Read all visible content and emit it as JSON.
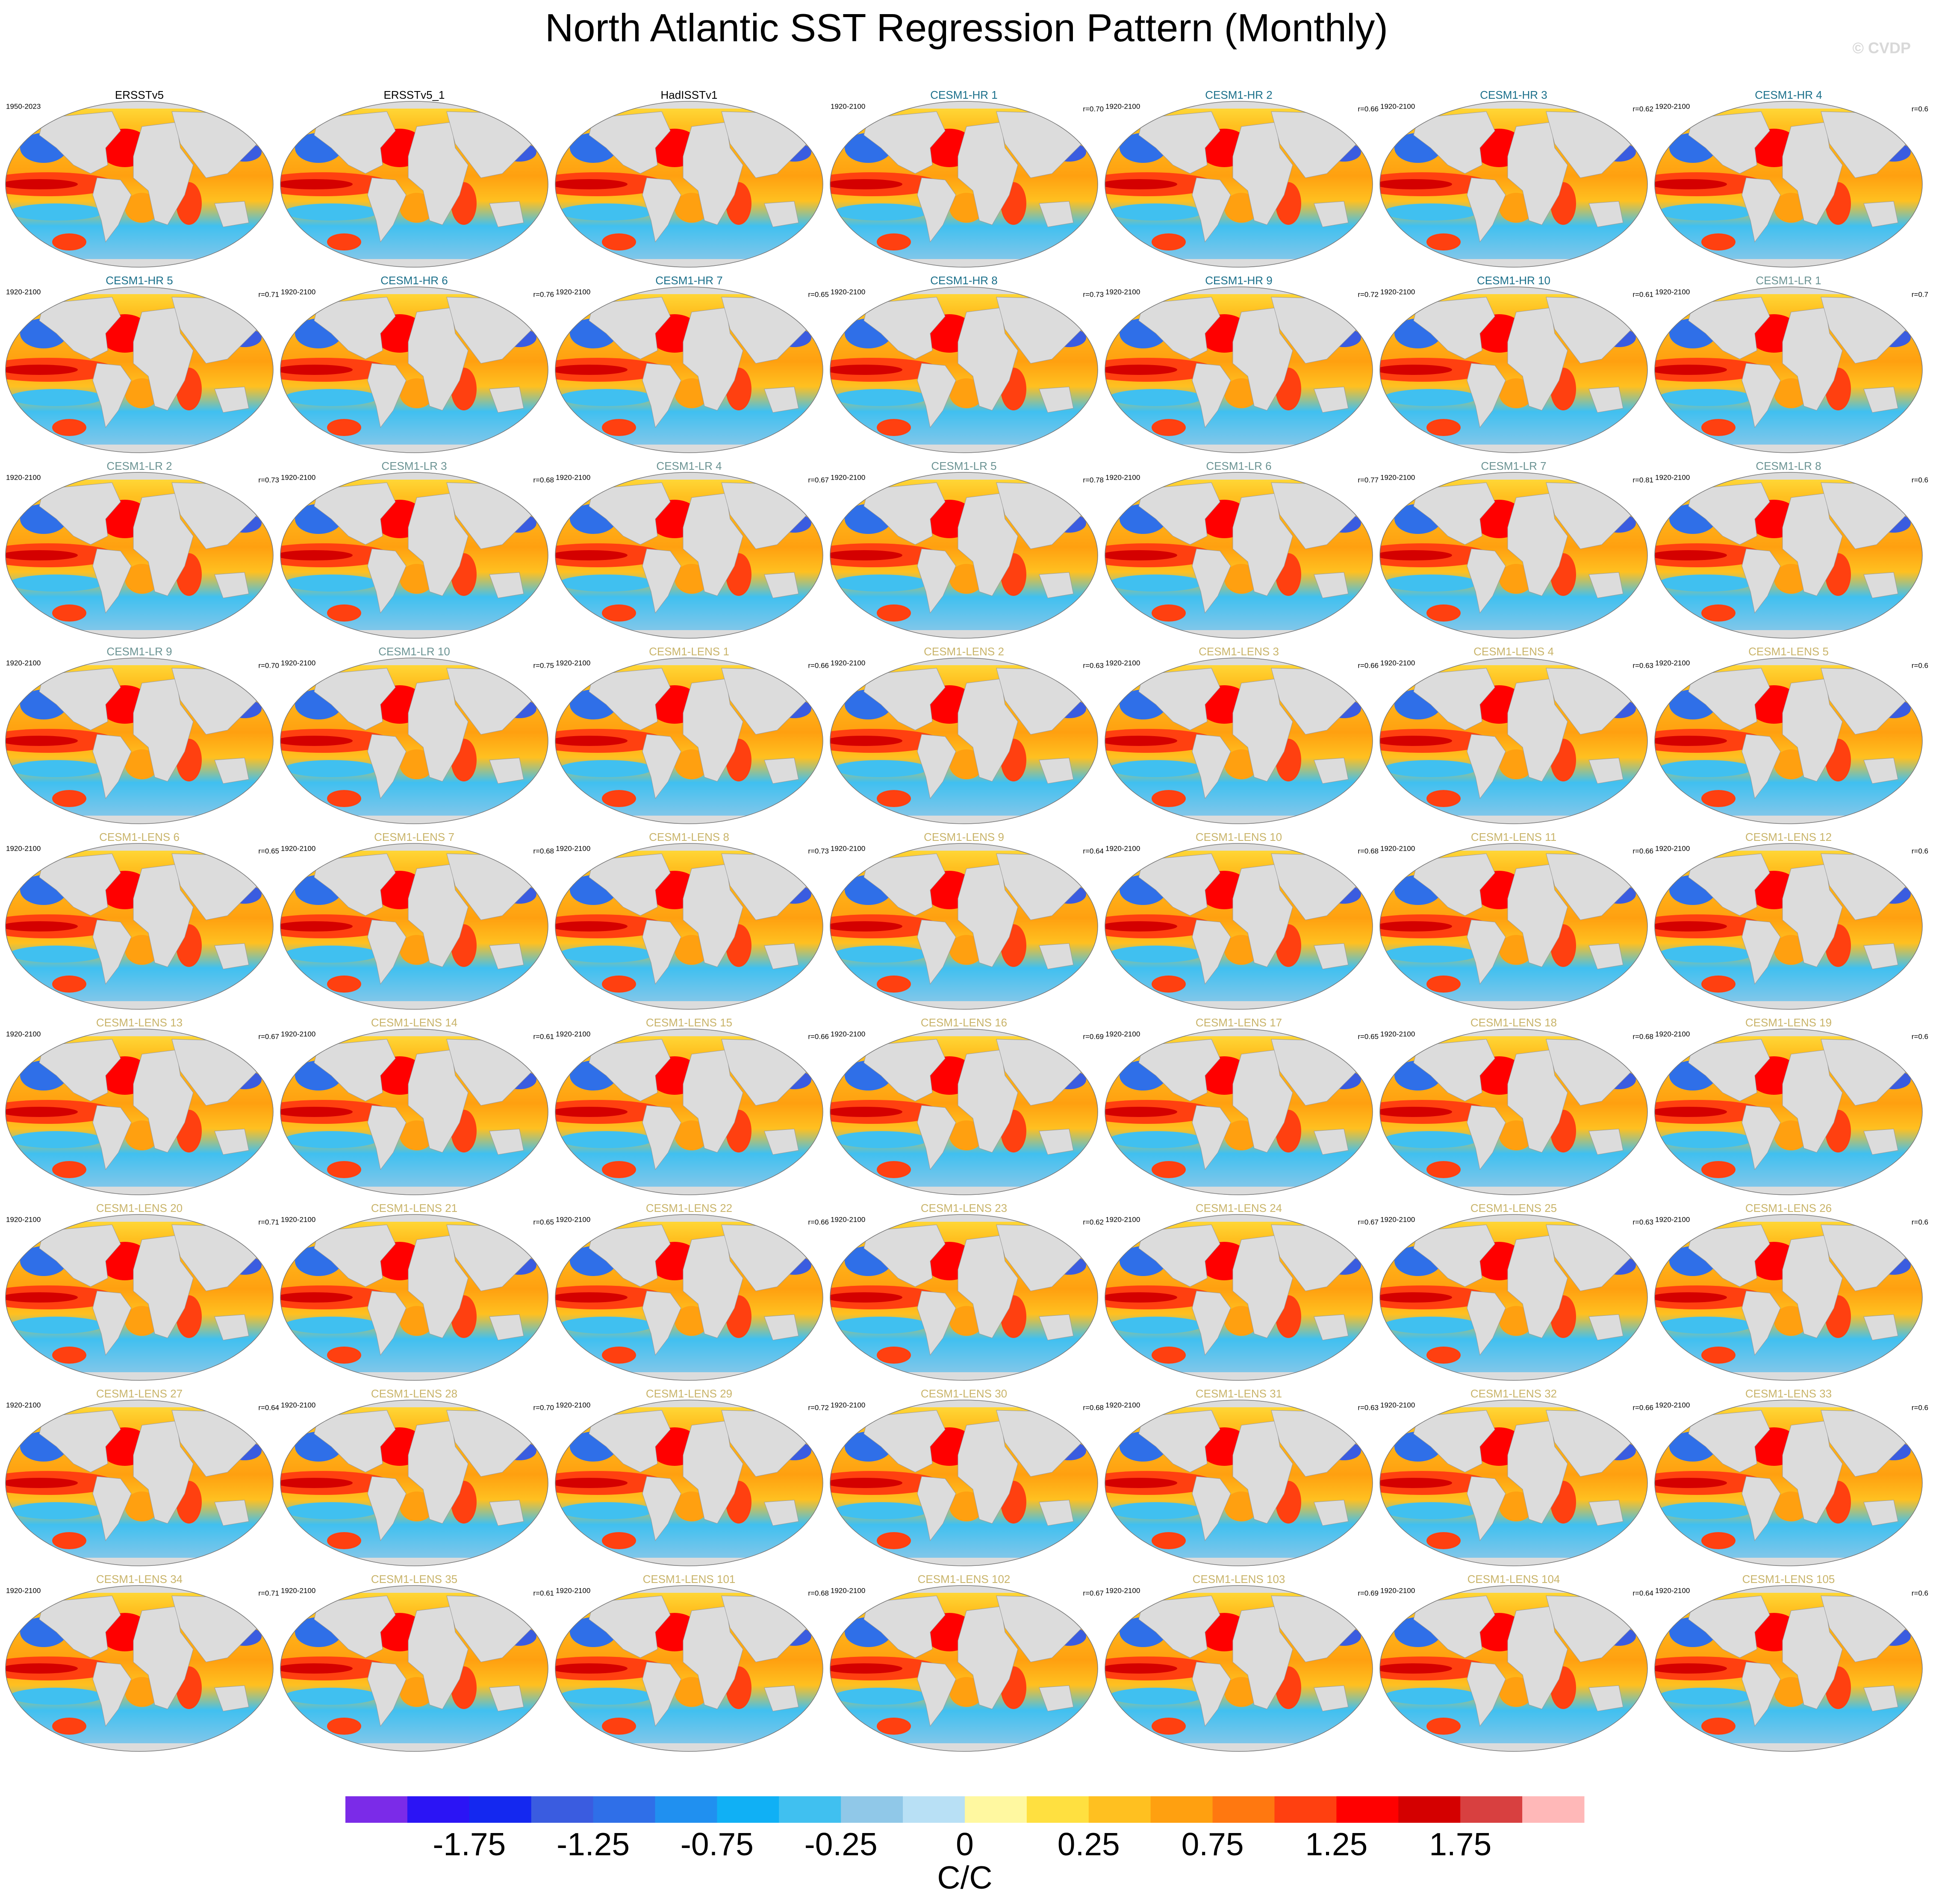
{
  "title": "North Atlantic SST Regression Pattern (Monthly)",
  "watermark": "© CVDP",
  "panels": [
    {
      "title": "ERSSTv5",
      "color": "#000000",
      "years": "1950-2023"
    },
    {
      "title": "ERSSTv5_1",
      "color": "#000000"
    },
    {
      "title": "HadISSTv1",
      "color": "#000000"
    },
    {
      "title": "CESM1-HR 1",
      "color": "#1a6f8a",
      "years": "1920-2100",
      "r": "r=0.70"
    },
    {
      "title": "CESM1-HR 2",
      "color": "#1a6f8a",
      "years": "1920-2100",
      "r": "r=0.66"
    },
    {
      "title": "CESM1-HR 3",
      "color": "#1a6f8a",
      "years": "1920-2100",
      "r": "r=0.62"
    },
    {
      "title": "CESM1-HR 4",
      "color": "#1a6f8a",
      "years": "1920-2100",
      "r": "r=0.6"
    },
    {
      "title": "CESM1-HR 5",
      "color": "#1a6f8a",
      "years": "1920-2100",
      "r": "r=0.71"
    },
    {
      "title": "CESM1-HR 6",
      "color": "#1a6f8a",
      "years": "1920-2100",
      "r": "r=0.76"
    },
    {
      "title": "CESM1-HR 7",
      "color": "#1a6f8a",
      "years": "1920-2100",
      "r": "r=0.65"
    },
    {
      "title": "CESM1-HR 8",
      "color": "#1a6f8a",
      "years": "1920-2100",
      "r": "r=0.73"
    },
    {
      "title": "CESM1-HR 9",
      "color": "#1a6f8a",
      "years": "1920-2100",
      "r": "r=0.72"
    },
    {
      "title": "CESM1-HR 10",
      "color": "#1a6f8a",
      "years": "1920-2100",
      "r": "r=0.61"
    },
    {
      "title": "CESM1-LR 1",
      "color": "#6b9393",
      "years": "1920-2100",
      "r": "r=0.7"
    },
    {
      "title": "CESM1-LR 2",
      "color": "#6b9393",
      "years": "1920-2100",
      "r": "r=0.73"
    },
    {
      "title": "CESM1-LR 3",
      "color": "#6b9393",
      "years": "1920-2100",
      "r": "r=0.68"
    },
    {
      "title": "CESM1-LR 4",
      "color": "#6b9393",
      "years": "1920-2100",
      "r": "r=0.67"
    },
    {
      "title": "CESM1-LR 5",
      "color": "#6b9393",
      "years": "1920-2100",
      "r": "r=0.78"
    },
    {
      "title": "CESM1-LR 6",
      "color": "#6b9393",
      "years": "1920-2100",
      "r": "r=0.77"
    },
    {
      "title": "CESM1-LR 7",
      "color": "#6b9393",
      "years": "1920-2100",
      "r": "r=0.81"
    },
    {
      "title": "CESM1-LR 8",
      "color": "#6b9393",
      "years": "1920-2100",
      "r": "r=0.6"
    },
    {
      "title": "CESM1-LR 9",
      "color": "#6b9393",
      "years": "1920-2100",
      "r": "r=0.70"
    },
    {
      "title": "CESM1-LR 10",
      "color": "#6b9393",
      "years": "1920-2100",
      "r": "r=0.75"
    },
    {
      "title": "CESM1-LENS 1",
      "color": "#c9b46a",
      "years": "1920-2100",
      "r": "r=0.66"
    },
    {
      "title": "CESM1-LENS 2",
      "color": "#c9b46a",
      "years": "1920-2100",
      "r": "r=0.63"
    },
    {
      "title": "CESM1-LENS 3",
      "color": "#c9b46a",
      "years": "1920-2100",
      "r": "r=0.66"
    },
    {
      "title": "CESM1-LENS 4",
      "color": "#c9b46a",
      "years": "1920-2100",
      "r": "r=0.63"
    },
    {
      "title": "CESM1-LENS 5",
      "color": "#c9b46a",
      "years": "1920-2100",
      "r": "r=0.6"
    },
    {
      "title": "CESM1-LENS 6",
      "color": "#c9b46a",
      "years": "1920-2100",
      "r": "r=0.65"
    },
    {
      "title": "CESM1-LENS 7",
      "color": "#c9b46a",
      "years": "1920-2100",
      "r": "r=0.68"
    },
    {
      "title": "CESM1-LENS 8",
      "color": "#c9b46a",
      "years": "1920-2100",
      "r": "r=0.73"
    },
    {
      "title": "CESM1-LENS 9",
      "color": "#c9b46a",
      "years": "1920-2100",
      "r": "r=0.64"
    },
    {
      "title": "CESM1-LENS 10",
      "color": "#c9b46a",
      "years": "1920-2100",
      "r": "r=0.68"
    },
    {
      "title": "CESM1-LENS 11",
      "color": "#c9b46a",
      "years": "1920-2100",
      "r": "r=0.66"
    },
    {
      "title": "CESM1-LENS 12",
      "color": "#c9b46a",
      "years": "1920-2100",
      "r": "r=0.6"
    },
    {
      "title": "CESM1-LENS 13",
      "color": "#c9b46a",
      "years": "1920-2100",
      "r": "r=0.67"
    },
    {
      "title": "CESM1-LENS 14",
      "color": "#c9b46a",
      "years": "1920-2100",
      "r": "r=0.61"
    },
    {
      "title": "CESM1-LENS 15",
      "color": "#c9b46a",
      "years": "1920-2100",
      "r": "r=0.66"
    },
    {
      "title": "CESM1-LENS 16",
      "color": "#c9b46a",
      "years": "1920-2100",
      "r": "r=0.69"
    },
    {
      "title": "CESM1-LENS 17",
      "color": "#c9b46a",
      "years": "1920-2100",
      "r": "r=0.65"
    },
    {
      "title": "CESM1-LENS 18",
      "color": "#c9b46a",
      "years": "1920-2100",
      "r": "r=0.68"
    },
    {
      "title": "CESM1-LENS 19",
      "color": "#c9b46a",
      "years": "1920-2100",
      "r": "r=0.6"
    },
    {
      "title": "CESM1-LENS 20",
      "color": "#c9b46a",
      "years": "1920-2100",
      "r": "r=0.71"
    },
    {
      "title": "CESM1-LENS 21",
      "color": "#c9b46a",
      "years": "1920-2100",
      "r": "r=0.65"
    },
    {
      "title": "CESM1-LENS 22",
      "color": "#c9b46a",
      "years": "1920-2100",
      "r": "r=0.66"
    },
    {
      "title": "CESM1-LENS 23",
      "color": "#c9b46a",
      "years": "1920-2100",
      "r": "r=0.62"
    },
    {
      "title": "CESM1-LENS 24",
      "color": "#c9b46a",
      "years": "1920-2100",
      "r": "r=0.67"
    },
    {
      "title": "CESM1-LENS 25",
      "color": "#c9b46a",
      "years": "1920-2100",
      "r": "r=0.63"
    },
    {
      "title": "CESM1-LENS 26",
      "color": "#c9b46a",
      "years": "1920-2100",
      "r": "r=0.6"
    },
    {
      "title": "CESM1-LENS 27",
      "color": "#c9b46a",
      "years": "1920-2100",
      "r": "r=0.64"
    },
    {
      "title": "CESM1-LENS 28",
      "color": "#c9b46a",
      "years": "1920-2100",
      "r": "r=0.70"
    },
    {
      "title": "CESM1-LENS 29",
      "color": "#c9b46a",
      "years": "1920-2100",
      "r": "r=0.72"
    },
    {
      "title": "CESM1-LENS 30",
      "color": "#c9b46a",
      "years": "1920-2100",
      "r": "r=0.68"
    },
    {
      "title": "CESM1-LENS 31",
      "color": "#c9b46a",
      "years": "1920-2100",
      "r": "r=0.63"
    },
    {
      "title": "CESM1-LENS 32",
      "color": "#c9b46a",
      "years": "1920-2100",
      "r": "r=0.66"
    },
    {
      "title": "CESM1-LENS 33",
      "color": "#c9b46a",
      "years": "1920-2100",
      "r": "r=0.6"
    },
    {
      "title": "CESM1-LENS 34",
      "color": "#c9b46a",
      "years": "1920-2100",
      "r": "r=0.71"
    },
    {
      "title": "CESM1-LENS 35",
      "color": "#c9b46a",
      "years": "1920-2100",
      "r": "r=0.61"
    },
    {
      "title": "CESM1-LENS 101",
      "color": "#c9b46a",
      "years": "1920-2100",
      "r": "r=0.68"
    },
    {
      "title": "CESM1-LENS 102",
      "color": "#c9b46a",
      "years": "1920-2100",
      "r": "r=0.67"
    },
    {
      "title": "CESM1-LENS 103",
      "color": "#c9b46a",
      "years": "1920-2100",
      "r": "r=0.69"
    },
    {
      "title": "CESM1-LENS 104",
      "color": "#c9b46a",
      "years": "1920-2100",
      "r": "r=0.64"
    },
    {
      "title": "CESM1-LENS 105",
      "color": "#c9b46a",
      "years": "1920-2100",
      "r": "r=0.6"
    }
  ],
  "colorbar": {
    "colors": [
      "#7b2be8",
      "#2b14f5",
      "#1428f0",
      "#3a5ce0",
      "#2f6fe8",
      "#2090f0",
      "#10b0f5",
      "#40c0f0",
      "#90c8e8",
      "#b8e0f5",
      "#fff8a0",
      "#ffe040",
      "#ffc020",
      "#ffa010",
      "#ff7810",
      "#ff4010",
      "#ff0000",
      "#d40000",
      "#d84040",
      "#ffb8b8"
    ],
    "ticks": [
      -1.75,
      -1.25,
      -0.75,
      -0.25,
      0,
      0.25,
      0.75,
      1.25,
      1.75
    ],
    "label": "C/C"
  }
}
